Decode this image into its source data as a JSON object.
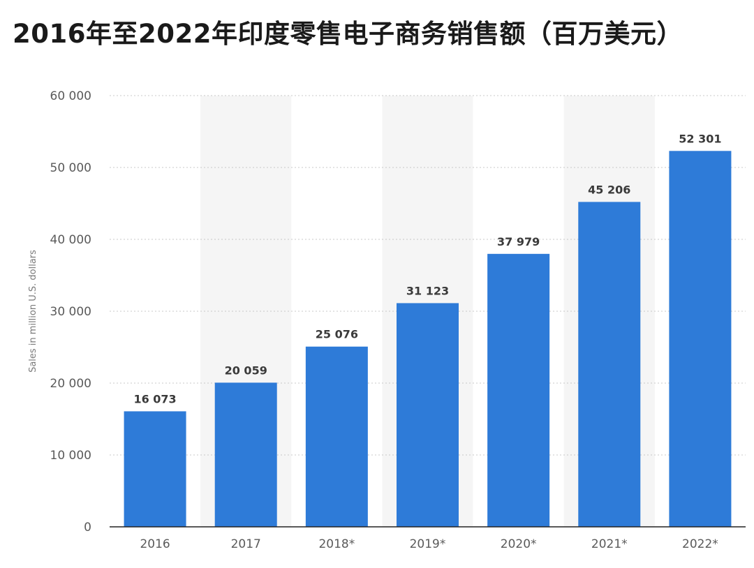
{
  "chart_data": {
    "type": "bar",
    "title": "2016年至2022年印度零售电子商务销售额（百万美元）",
    "xlabel": "",
    "ylabel": "Sales in million U.S. dollars",
    "categories": [
      "2016",
      "2017",
      "2018*",
      "2019*",
      "2020*",
      "2021*",
      "2022*"
    ],
    "values": [
      16073,
      20059,
      25076,
      31123,
      37979,
      45206,
      52301
    ],
    "value_labels": [
      "16 073",
      "20 059",
      "25 076",
      "31 123",
      "37 979",
      "45 206",
      "52 301"
    ],
    "ylim": [
      0,
      60000
    ],
    "yticks": [
      0,
      10000,
      20000,
      30000,
      40000,
      50000,
      60000
    ],
    "ytick_labels": [
      "0",
      "10 000",
      "20 000",
      "30 000",
      "40 000",
      "50 000",
      "60 000"
    ],
    "grid": true,
    "alternating_column_shading": true,
    "colors": {
      "bar": "#2e7bd8",
      "shade": "#f5f5f5",
      "grid": "#c8c8c8",
      "axis": "#222222"
    }
  }
}
